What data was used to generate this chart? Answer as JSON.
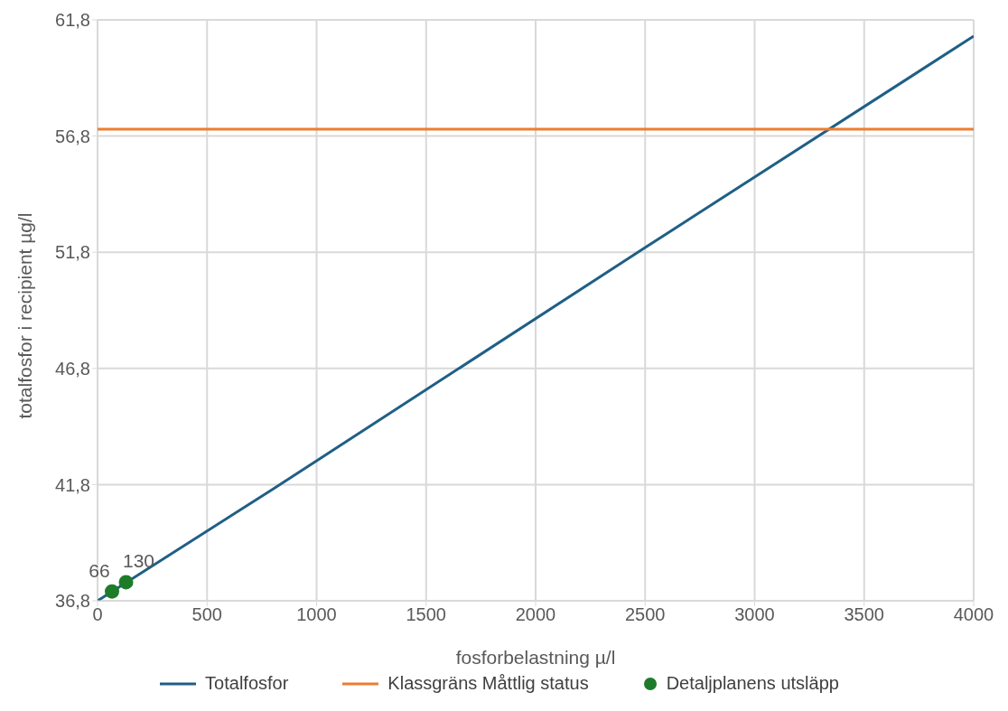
{
  "chart_data": {
    "type": "line",
    "xlabel": "fosforbelastning µ/l",
    "ylabel": "totalfosfor i recipient µg/l",
    "xlim": [
      0,
      4000
    ],
    "xticks": [
      0,
      500,
      1000,
      1500,
      2000,
      2500,
      3000,
      3500,
      4000
    ],
    "ylim": [
      36.8,
      61.8
    ],
    "yticks": [
      {
        "value": 36.8,
        "label": "36,8"
      },
      {
        "value": 41.8,
        "label": "41,8"
      },
      {
        "value": 46.8,
        "label": "46,8"
      },
      {
        "value": 51.8,
        "label": "51,8"
      },
      {
        "value": 56.8,
        "label": "56,8"
      },
      {
        "value": 61.8,
        "label": "61,8"
      }
    ],
    "series": [
      {
        "name": "Totalfosfor",
        "color": "#1f5f86",
        "marker": "none",
        "x": [
          0,
          800,
          2500,
          4000
        ],
        "values": [
          36.8,
          41.6,
          52.0,
          61.1
        ]
      },
      {
        "name": "Klassgräns Måttlig status",
        "color": "#ed7d31",
        "marker": "none",
        "x": [
          0,
          4000
        ],
        "values": [
          57.1,
          57.1
        ]
      },
      {
        "name": "Detaljplanens utsläpp",
        "color": "#1e7b2a",
        "type": "scatter",
        "marker": "circle",
        "x": [
          66,
          130
        ],
        "values": [
          37.2,
          37.6
        ]
      }
    ],
    "annotations": [
      {
        "text": "66",
        "x": 66,
        "y": 37.2
      },
      {
        "text": "130",
        "x": 130,
        "y": 37.6
      }
    ],
    "grid": true,
    "legend": "bottom",
    "line_style": "solid"
  }
}
